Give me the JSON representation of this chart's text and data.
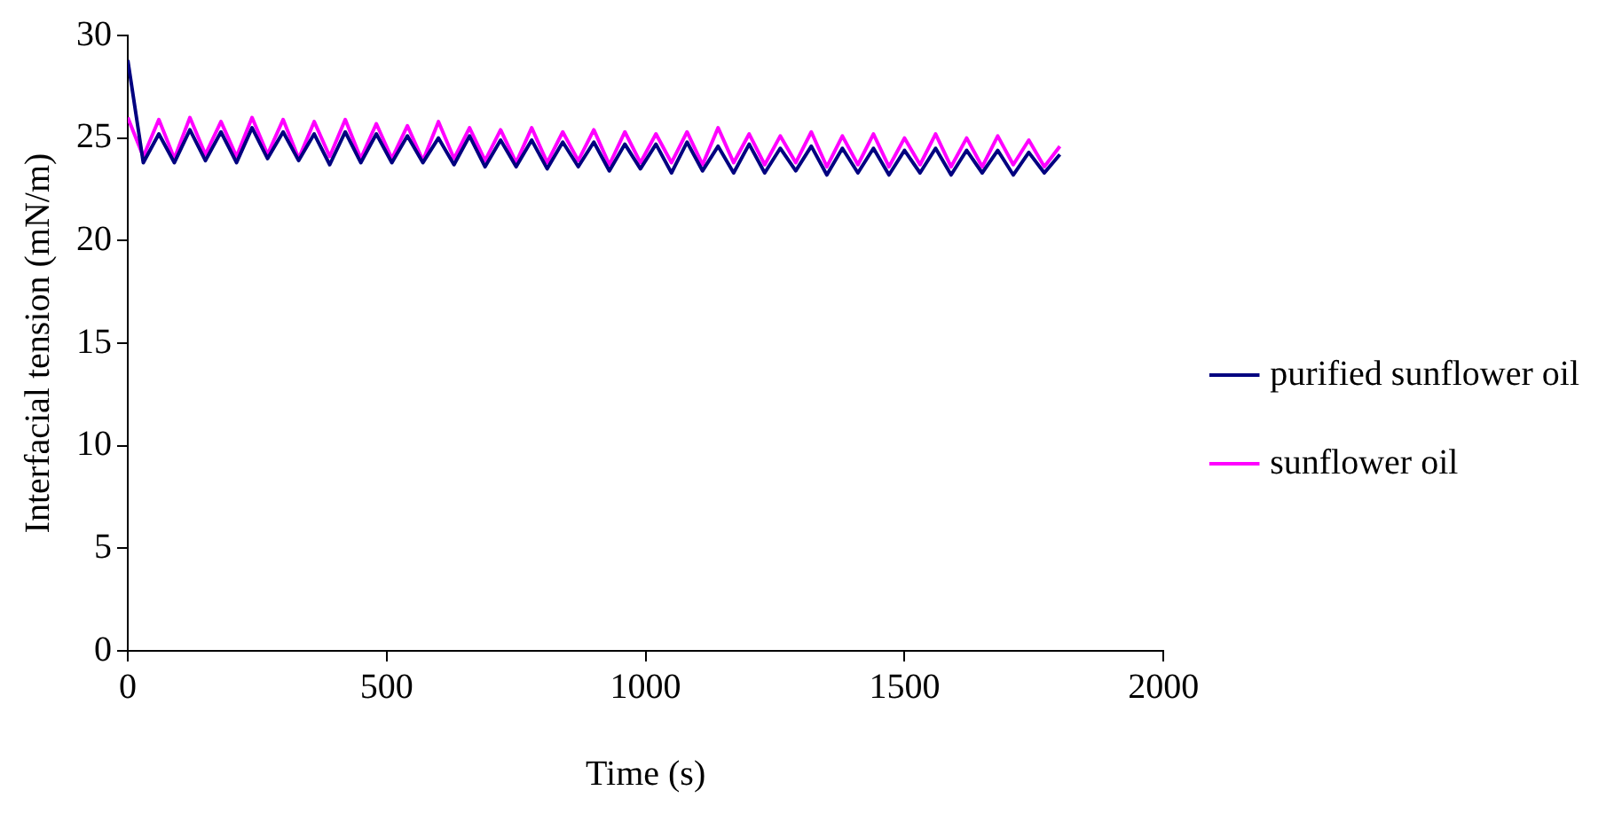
{
  "chart_data": {
    "type": "line",
    "xlabel": "Time (s)",
    "ylabel": "Interfacial tension (mN/m)",
    "x": [
      0,
      30,
      60,
      90,
      120,
      150,
      180,
      210,
      240,
      270,
      300,
      330,
      360,
      390,
      420,
      450,
      480,
      510,
      540,
      570,
      600,
      630,
      660,
      690,
      720,
      750,
      780,
      810,
      840,
      870,
      900,
      930,
      960,
      990,
      1020,
      1050,
      1080,
      1110,
      1140,
      1170,
      1200,
      1230,
      1260,
      1290,
      1320,
      1350,
      1380,
      1410,
      1440,
      1470,
      1500,
      1530,
      1560,
      1590,
      1620,
      1650,
      1680,
      1710,
      1740,
      1770,
      1800
    ],
    "series": [
      {
        "name": "purified sunflower oil",
        "color": "#000080",
        "values": [
          28.8,
          23.8,
          25.2,
          23.8,
          25.4,
          23.9,
          25.3,
          23.8,
          25.5,
          24.0,
          25.3,
          23.9,
          25.2,
          23.7,
          25.3,
          23.8,
          25.2,
          23.8,
          25.1,
          23.8,
          25.0,
          23.7,
          25.1,
          23.6,
          24.9,
          23.6,
          24.9,
          23.5,
          24.8,
          23.6,
          24.8,
          23.4,
          24.7,
          23.5,
          24.7,
          23.3,
          24.8,
          23.4,
          24.6,
          23.3,
          24.7,
          23.3,
          24.5,
          23.4,
          24.6,
          23.2,
          24.5,
          23.3,
          24.5,
          23.2,
          24.4,
          23.3,
          24.5,
          23.2,
          24.4,
          23.3,
          24.4,
          23.2,
          24.3,
          23.3,
          24.2
        ]
      },
      {
        "name": "sunflower oil",
        "color": "#ff00ff",
        "values": [
          26.0,
          24.1,
          25.9,
          24.0,
          26.0,
          24.2,
          25.8,
          24.1,
          26.0,
          24.2,
          25.9,
          24.0,
          25.8,
          24.1,
          25.9,
          24.0,
          25.7,
          24.0,
          25.6,
          23.9,
          25.8,
          24.0,
          25.5,
          23.9,
          25.4,
          23.8,
          25.5,
          23.8,
          25.3,
          23.9,
          25.4,
          23.7,
          25.3,
          23.8,
          25.2,
          23.8,
          25.3,
          23.7,
          25.5,
          23.8,
          25.2,
          23.7,
          25.1,
          23.8,
          25.3,
          23.6,
          25.1,
          23.7,
          25.2,
          23.6,
          25.0,
          23.7,
          25.2,
          23.6,
          25.0,
          23.6,
          25.1,
          23.7,
          24.9,
          23.6,
          24.6
        ]
      }
    ],
    "xlim": [
      0,
      2000
    ],
    "xticks": [
      0,
      500,
      1000,
      1500,
      2000
    ],
    "ylim": [
      0,
      30
    ],
    "yticks": [
      0,
      5,
      10,
      15,
      20,
      25,
      30
    ],
    "grid": false,
    "legend": "right",
    "marker": "none",
    "line_style": "solid"
  }
}
